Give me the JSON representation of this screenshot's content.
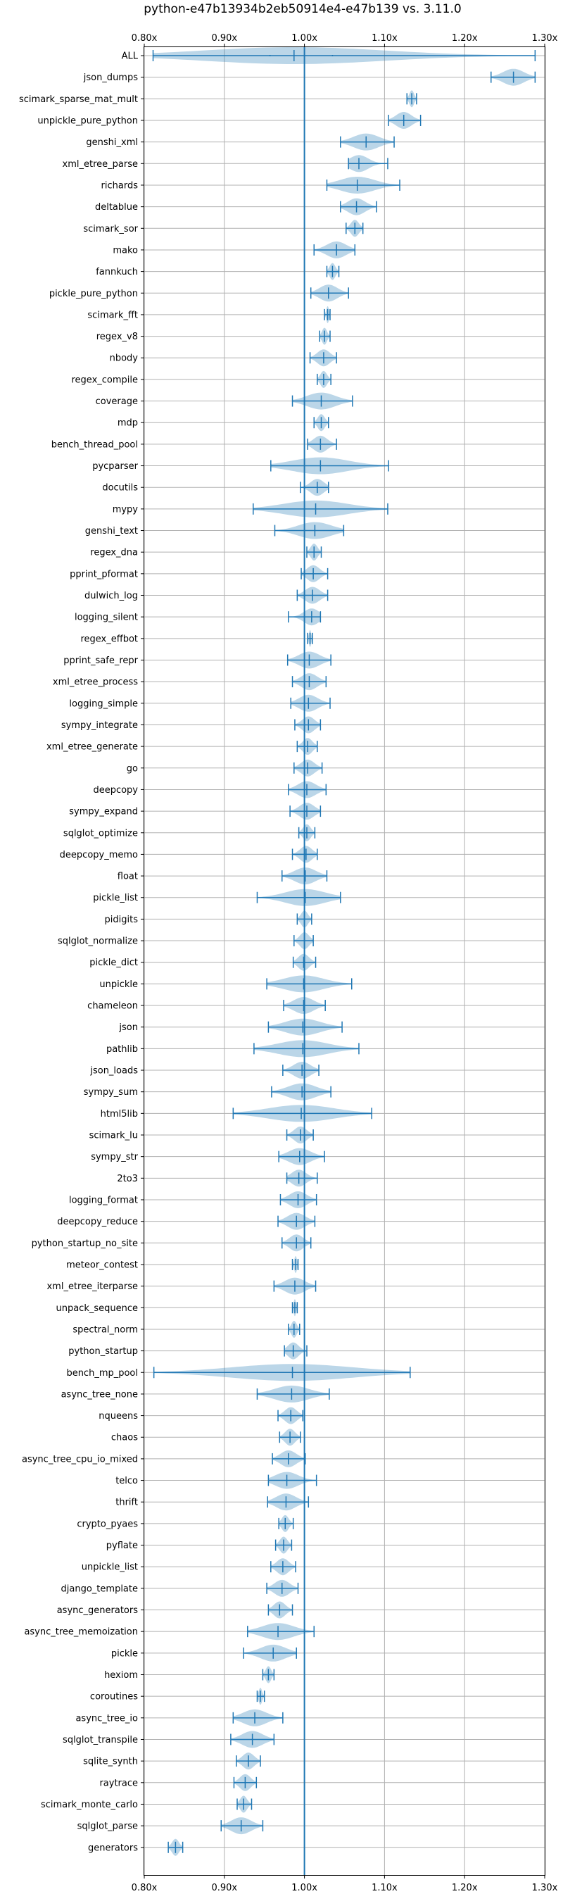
{
  "chart_data": {
    "type": "violin",
    "orientation": "horizontal",
    "title": "python-e47b13934b2eb50914e4-e47b139 vs. 3.11.0",
    "xlim": [
      0.8,
      1.3
    ],
    "xticks": [
      0.8,
      0.9,
      1.0,
      1.1,
      1.2,
      1.3
    ],
    "xtick_labels": [
      "0.80x",
      "0.90x",
      "1.00x",
      "1.10x",
      "1.20x",
      "1.30x"
    ],
    "reference_line": 1.0,
    "grid": true,
    "benchmarks": [
      {
        "name": "ALL",
        "min": 0.811,
        "max": 1.288,
        "median": 0.987,
        "q1": 0.957,
        "q3": 1.035
      },
      {
        "name": "json_dumps",
        "min": 1.233,
        "max": 1.288,
        "median": 1.261
      },
      {
        "name": "scimark_sparse_mat_mult",
        "min": 1.128,
        "max": 1.14,
        "median": 1.134
      },
      {
        "name": "unpickle_pure_python",
        "min": 1.105,
        "max": 1.145,
        "median": 1.124
      },
      {
        "name": "genshi_xml",
        "min": 1.045,
        "max": 1.112,
        "median": 1.077
      },
      {
        "name": "xml_etree_parse",
        "min": 1.055,
        "max": 1.104,
        "median": 1.068
      },
      {
        "name": "richards",
        "min": 1.028,
        "max": 1.119,
        "median": 1.066
      },
      {
        "name": "deltablue",
        "min": 1.045,
        "max": 1.09,
        "median": 1.065
      },
      {
        "name": "scimark_sor",
        "min": 1.052,
        "max": 1.073,
        "median": 1.063
      },
      {
        "name": "mako",
        "min": 1.012,
        "max": 1.063,
        "median": 1.04
      },
      {
        "name": "fannkuch",
        "min": 1.028,
        "max": 1.043,
        "median": 1.035
      },
      {
        "name": "pickle_pure_python",
        "min": 1.008,
        "max": 1.055,
        "median": 1.03
      },
      {
        "name": "scimark_fft",
        "min": 1.025,
        "max": 1.032,
        "median": 1.029
      },
      {
        "name": "regex_v8",
        "min": 1.019,
        "max": 1.032,
        "median": 1.025
      },
      {
        "name": "nbody",
        "min": 1.007,
        "max": 1.04,
        "median": 1.024
      },
      {
        "name": "regex_compile",
        "min": 1.016,
        "max": 1.033,
        "median": 1.024
      },
      {
        "name": "coverage",
        "min": 0.985,
        "max": 1.06,
        "median": 1.021
      },
      {
        "name": "mdp",
        "min": 1.012,
        "max": 1.03,
        "median": 1.021
      },
      {
        "name": "bench_thread_pool",
        "min": 1.004,
        "max": 1.04,
        "median": 1.02
      },
      {
        "name": "pycparser",
        "min": 0.958,
        "max": 1.105,
        "median": 1.02
      },
      {
        "name": "docutils",
        "min": 0.995,
        "max": 1.03,
        "median": 1.016
      },
      {
        "name": "mypy",
        "min": 0.936,
        "max": 1.104,
        "median": 1.014
      },
      {
        "name": "genshi_text",
        "min": 0.963,
        "max": 1.049,
        "median": 1.013
      },
      {
        "name": "regex_dna",
        "min": 1.003,
        "max": 1.021,
        "median": 1.012
      },
      {
        "name": "pprint_pformat",
        "min": 0.996,
        "max": 1.029,
        "median": 1.011
      },
      {
        "name": "dulwich_log",
        "min": 0.991,
        "max": 1.029,
        "median": 1.01
      },
      {
        "name": "logging_silent",
        "min": 0.98,
        "max": 1.02,
        "median": 1.009
      },
      {
        "name": "regex_effbot",
        "min": 1.004,
        "max": 1.01,
        "median": 1.007
      },
      {
        "name": "pprint_safe_repr",
        "min": 0.979,
        "max": 1.033,
        "median": 1.006
      },
      {
        "name": "xml_etree_process",
        "min": 0.985,
        "max": 1.027,
        "median": 1.006
      },
      {
        "name": "logging_simple",
        "min": 0.983,
        "max": 1.032,
        "median": 1.005
      },
      {
        "name": "sympy_integrate",
        "min": 0.988,
        "max": 1.02,
        "median": 1.005
      },
      {
        "name": "xml_etree_generate",
        "min": 0.991,
        "max": 1.016,
        "median": 1.004
      },
      {
        "name": "go",
        "min": 0.987,
        "max": 1.022,
        "median": 1.004
      },
      {
        "name": "deepcopy",
        "min": 0.98,
        "max": 1.027,
        "median": 1.003
      },
      {
        "name": "sympy_expand",
        "min": 0.982,
        "max": 1.02,
        "median": 1.003
      },
      {
        "name": "sqlglot_optimize",
        "min": 0.993,
        "max": 1.013,
        "median": 1.003
      },
      {
        "name": "deepcopy_memo",
        "min": 0.985,
        "max": 1.016,
        "median": 1.002
      },
      {
        "name": "float",
        "min": 0.972,
        "max": 1.028,
        "median": 1.001
      },
      {
        "name": "pickle_list",
        "min": 0.941,
        "max": 1.045,
        "median": 1.001
      },
      {
        "name": "pidigits",
        "min": 0.991,
        "max": 1.009,
        "median": 1.0
      },
      {
        "name": "sqlglot_normalize",
        "min": 0.987,
        "max": 1.011,
        "median": 1.0
      },
      {
        "name": "pickle_dict",
        "min": 0.986,
        "max": 1.014,
        "median": 0.999
      },
      {
        "name": "unpickle",
        "min": 0.953,
        "max": 1.059,
        "median": 0.999
      },
      {
        "name": "chameleon",
        "min": 0.974,
        "max": 1.026,
        "median": 0.999
      },
      {
        "name": "json",
        "min": 0.955,
        "max": 1.047,
        "median": 0.998
      },
      {
        "name": "pathlib",
        "min": 0.937,
        "max": 1.068,
        "median": 0.998
      },
      {
        "name": "json_loads",
        "min": 0.973,
        "max": 1.018,
        "median": 0.997
      },
      {
        "name": "sympy_sum",
        "min": 0.959,
        "max": 1.033,
        "median": 0.997
      },
      {
        "name": "html5lib",
        "min": 0.911,
        "max": 1.084,
        "median": 0.996
      },
      {
        "name": "scimark_lu",
        "min": 0.978,
        "max": 1.011,
        "median": 0.995
      },
      {
        "name": "sympy_str",
        "min": 0.968,
        "max": 1.025,
        "median": 0.994
      },
      {
        "name": "2to3",
        "min": 0.978,
        "max": 1.016,
        "median": 0.993
      },
      {
        "name": "logging_format",
        "min": 0.97,
        "max": 1.015,
        "median": 0.992
      },
      {
        "name": "deepcopy_reduce",
        "min": 0.967,
        "max": 1.013,
        "median": 0.99
      },
      {
        "name": "python_startup_no_site",
        "min": 0.972,
        "max": 1.008,
        "median": 0.99
      },
      {
        "name": "meteor_contest",
        "min": 0.985,
        "max": 0.992,
        "median": 0.989
      },
      {
        "name": "xml_etree_iterparse",
        "min": 0.962,
        "max": 1.014,
        "median": 0.988
      },
      {
        "name": "unpack_sequence",
        "min": 0.985,
        "max": 0.991,
        "median": 0.988
      },
      {
        "name": "spectral_norm",
        "min": 0.98,
        "max": 0.994,
        "median": 0.987
      },
      {
        "name": "python_startup",
        "min": 0.975,
        "max": 1.003,
        "median": 0.986
      },
      {
        "name": "bench_mp_pool",
        "min": 0.812,
        "max": 1.132,
        "median": 0.985
      },
      {
        "name": "async_tree_none",
        "min": 0.941,
        "max": 1.031,
        "median": 0.984
      },
      {
        "name": "nqueens",
        "min": 0.967,
        "max": 0.998,
        "median": 0.983
      },
      {
        "name": "chaos",
        "min": 0.969,
        "max": 0.995,
        "median": 0.982
      },
      {
        "name": "async_tree_cpu_io_mixed",
        "min": 0.96,
        "max": 1.001,
        "median": 0.98
      },
      {
        "name": "telco",
        "min": 0.955,
        "max": 1.015,
        "median": 0.978
      },
      {
        "name": "thrift",
        "min": 0.954,
        "max": 1.005,
        "median": 0.977
      },
      {
        "name": "crypto_pyaes",
        "min": 0.968,
        "max": 0.986,
        "median": 0.976
      },
      {
        "name": "pyflate",
        "min": 0.964,
        "max": 0.984,
        "median": 0.974
      },
      {
        "name": "unpickle_list",
        "min": 0.958,
        "max": 0.989,
        "median": 0.973
      },
      {
        "name": "django_template",
        "min": 0.953,
        "max": 0.992,
        "median": 0.972
      },
      {
        "name": "async_generators",
        "min": 0.955,
        "max": 0.985,
        "median": 0.969
      },
      {
        "name": "async_tree_memoization",
        "min": 0.929,
        "max": 1.012,
        "median": 0.967
      },
      {
        "name": "pickle",
        "min": 0.924,
        "max": 0.99,
        "median": 0.961
      },
      {
        "name": "hexiom",
        "min": 0.948,
        "max": 0.962,
        "median": 0.955
      },
      {
        "name": "coroutines",
        "min": 0.941,
        "max": 0.95,
        "median": 0.945
      },
      {
        "name": "async_tree_io",
        "min": 0.911,
        "max": 0.973,
        "median": 0.938
      },
      {
        "name": "sqlglot_transpile",
        "min": 0.908,
        "max": 0.962,
        "median": 0.935
      },
      {
        "name": "sqlite_synth",
        "min": 0.915,
        "max": 0.945,
        "median": 0.93
      },
      {
        "name": "raytrace",
        "min": 0.912,
        "max": 0.94,
        "median": 0.926
      },
      {
        "name": "scimark_monte_carlo",
        "min": 0.916,
        "max": 0.934,
        "median": 0.924
      },
      {
        "name": "sqlglot_parse",
        "min": 0.896,
        "max": 0.948,
        "median": 0.921
      },
      {
        "name": "generators",
        "min": 0.83,
        "max": 0.848,
        "median": 0.839
      }
    ]
  }
}
